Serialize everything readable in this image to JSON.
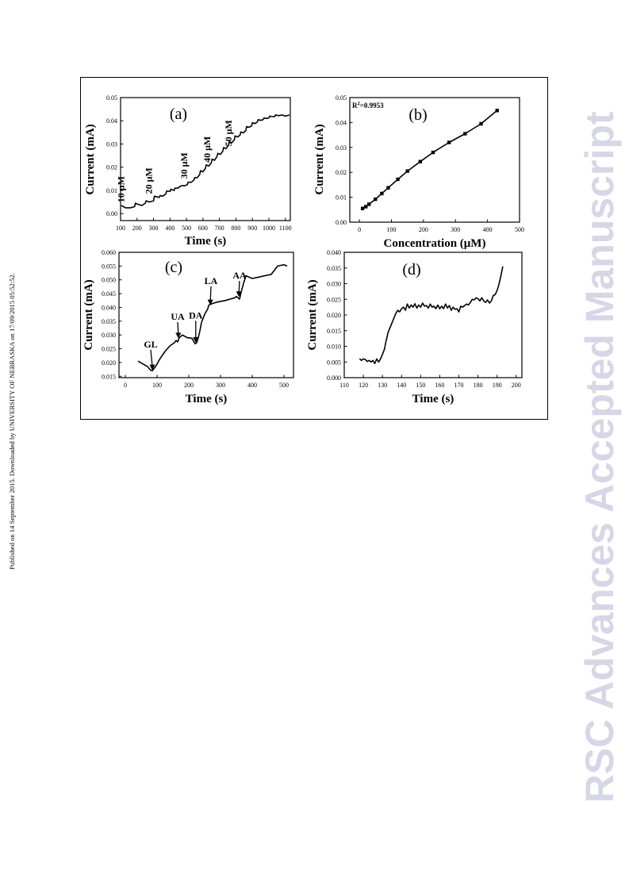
{
  "side_note": "Published on 14 September 2015. Downloaded by UNIVERSITY OF NEBRASKA on 17/09/2015 05:52:52.",
  "watermark": "RSC Advances Accepted Manuscript",
  "chart_data": [
    {
      "id": "a",
      "type": "line",
      "panel_label": "(a)",
      "xlabel": "Time (s)",
      "ylabel": "Current (mA)",
      "xlim": [
        100,
        1130
      ],
      "ylim": [
        -0.003,
        0.05
      ],
      "xticks": [
        100,
        200,
        300,
        400,
        500,
        600,
        700,
        800,
        900,
        1000,
        1100
      ],
      "xtick_labels": [
        "100",
        "200",
        "300",
        "400",
        "500",
        "600",
        "700",
        "800",
        "900",
        "1000",
        "1100"
      ],
      "yticks": [
        0.0,
        0.01,
        0.02,
        0.03,
        0.04,
        0.05
      ],
      "ytick_labels": [
        "0.00",
        "0.01",
        "0.02",
        "0.03",
        "0.04",
        "0.05"
      ],
      "annotations": [
        {
          "text": "10 μM",
          "x": 122,
          "y": 0.0048
        },
        {
          "text": "20 μM",
          "x": 290,
          "y": 0.0085
        },
        {
          "text": "30 μM",
          "x": 505,
          "y": 0.015
        },
        {
          "text": "40 μM",
          "x": 645,
          "y": 0.022
        },
        {
          "text": "50 μM",
          "x": 775,
          "y": 0.029
        }
      ],
      "series": [
        {
          "x": [
            105,
            130,
            160,
            185,
            190,
            205,
            230,
            250,
            255,
            275,
            300,
            305,
            335,
            340,
            355,
            375,
            380,
            400,
            405,
            425,
            430,
            450,
            455,
            470,
            480,
            490,
            505,
            510,
            530,
            545,
            550,
            565,
            580,
            585,
            600,
            615,
            620,
            635,
            650,
            655,
            670,
            685,
            690,
            705,
            720,
            725,
            740,
            755,
            760,
            775,
            790,
            795,
            810,
            825,
            830,
            845,
            860,
            865,
            880,
            895,
            900,
            915,
            930,
            935,
            950,
            965,
            970,
            985,
            1000,
            1005,
            1020,
            1035,
            1040,
            1060,
            1080,
            1100,
            1125
          ],
          "y": [
            0.0035,
            0.0025,
            0.0025,
            0.003,
            0.0045,
            0.004,
            0.0035,
            0.0045,
            0.0055,
            0.005,
            0.0055,
            0.0075,
            0.007,
            0.0078,
            0.0075,
            0.0085,
            0.0098,
            0.0095,
            0.0105,
            0.01,
            0.011,
            0.011,
            0.0115,
            0.012,
            0.012,
            0.012,
            0.0125,
            0.0135,
            0.0135,
            0.0145,
            0.0155,
            0.0155,
            0.0168,
            0.0185,
            0.018,
            0.0195,
            0.021,
            0.0205,
            0.0218,
            0.0235,
            0.023,
            0.0245,
            0.026,
            0.0255,
            0.0268,
            0.0285,
            0.028,
            0.0295,
            0.031,
            0.0305,
            0.0318,
            0.0335,
            0.033,
            0.0338,
            0.0352,
            0.0348,
            0.0358,
            0.0375,
            0.0372,
            0.0378,
            0.0392,
            0.0388,
            0.0395,
            0.0405,
            0.0402,
            0.0405,
            0.0412,
            0.041,
            0.0412,
            0.042,
            0.0418,
            0.0418,
            0.0425,
            0.0422,
            0.0425,
            0.042,
            0.0425
          ]
        }
      ]
    },
    {
      "id": "b",
      "type": "line",
      "panel_label": "(b)",
      "xlabel": "Concentration (μM)",
      "ylabel": "Current (mA)",
      "xlim": [
        -30,
        500
      ],
      "ylim": [
        0.0,
        0.05
      ],
      "xticks": [
        0,
        100,
        200,
        300,
        400,
        500
      ],
      "xtick_labels": [
        "0",
        "100",
        "200",
        "300",
        "400",
        "500"
      ],
      "yticks": [
        0.0,
        0.01,
        0.02,
        0.03,
        0.04,
        0.05
      ],
      "yticks_labels": [
        "0.00",
        "0.01",
        "0.02",
        "0.03",
        "0.04",
        "0.05"
      ],
      "r2_prefix": "R",
      "r2_sup": "2",
      "r2_value": "=0.9953",
      "series": [
        {
          "x": [
            10,
            20,
            30,
            50,
            70,
            90,
            120,
            150,
            190,
            230,
            280,
            330,
            380,
            430
          ],
          "y": [
            0.0055,
            0.0062,
            0.0072,
            0.0092,
            0.0115,
            0.0138,
            0.0172,
            0.0205,
            0.0243,
            0.028,
            0.032,
            0.0355,
            0.0395,
            0.0448
          ]
        }
      ]
    },
    {
      "id": "c",
      "type": "line",
      "panel_label": "(c)",
      "xlabel": "Time (s)",
      "ylabel": "Current (mA)",
      "xlim": [
        -20,
        530
      ],
      "ylim": [
        0.0145,
        0.06
      ],
      "xticks": [
        0,
        100,
        200,
        300,
        400,
        500
      ],
      "xtick_labels": [
        "0",
        "100",
        "200",
        "300",
        "400",
        "500"
      ],
      "yticks": [
        0.015,
        0.02,
        0.025,
        0.03,
        0.035,
        0.04,
        0.045,
        0.05,
        0.055,
        0.06
      ],
      "ytick_labels": [
        "0.015",
        "0.020",
        "0.025",
        "0.030",
        "0.035",
        "0.040",
        "0.045",
        "0.050",
        "0.055",
        "0.060"
      ],
      "annotations": [
        {
          "text": "GL",
          "x": 80,
          "y": 0.0255,
          "arrow_to": [
            85,
            0.0172
          ]
        },
        {
          "text": "UA",
          "x": 165,
          "y": 0.0355,
          "arrow_to": [
            167,
            0.0288
          ]
        },
        {
          "text": "DA",
          "x": 222,
          "y": 0.036,
          "arrow_to": [
            222,
            0.0272
          ]
        },
        {
          "text": "LA",
          "x": 270,
          "y": 0.0485,
          "arrow_to": [
            268,
            0.0408
          ]
        },
        {
          "text": "AA",
          "x": 360,
          "y": 0.0505,
          "arrow_to": [
            358,
            0.0438
          ]
        }
      ],
      "series": [
        {
          "x": [
            40,
            55,
            70,
            80,
            85,
            95,
            110,
            125,
            140,
            155,
            160,
            165,
            170,
            180,
            195,
            210,
            215,
            220,
            225,
            230,
            235,
            240,
            250,
            260,
            262,
            265,
            270,
            285,
            300,
            315,
            330,
            345,
            350,
            355,
            360,
            365,
            372,
            380,
            390,
            400,
            420,
            440,
            460,
            480,
            500,
            510
          ],
          "y": [
            0.0205,
            0.0195,
            0.0185,
            0.0172,
            0.017,
            0.0185,
            0.0215,
            0.024,
            0.026,
            0.0272,
            0.028,
            0.0275,
            0.029,
            0.03,
            0.029,
            0.0288,
            0.0278,
            0.0268,
            0.0272,
            0.029,
            0.0315,
            0.0345,
            0.0375,
            0.0395,
            0.0405,
            0.041,
            0.0412,
            0.0418,
            0.0422,
            0.0425,
            0.043,
            0.0435,
            0.044,
            0.0435,
            0.043,
            0.0455,
            0.0485,
            0.0515,
            0.051,
            0.0505,
            0.051,
            0.0515,
            0.052,
            0.055,
            0.0555,
            0.055
          ]
        }
      ]
    },
    {
      "id": "d",
      "type": "line",
      "panel_label": "(d)",
      "xlabel": "Time (s)",
      "ylabel": "Current (mA)",
      "xlim": [
        110,
        203
      ],
      "ylim": [
        0.0,
        0.04
      ],
      "xticks": [
        110,
        120,
        130,
        140,
        150,
        160,
        170,
        180,
        190,
        200
      ],
      "xtick_labels": [
        "110",
        "120",
        "130",
        "140",
        "150",
        "160",
        "170",
        "180",
        "190",
        "200"
      ],
      "yticks": [
        0.0,
        0.005,
        0.01,
        0.015,
        0.02,
        0.025,
        0.03,
        0.035,
        0.04
      ],
      "ytick_labels": [
        "0.000",
        "0.005",
        "0.010",
        "0.015",
        "0.020",
        "0.025",
        "0.030",
        "0.035",
        "0.040"
      ],
      "series": [
        {
          "x": [
            118,
            119,
            120,
            121,
            122,
            123,
            124,
            125,
            126,
            127,
            128,
            129,
            130,
            131,
            132,
            133,
            134,
            135,
            136,
            137,
            138,
            139,
            140,
            141,
            142,
            143,
            144,
            145,
            146,
            147,
            148,
            149,
            150,
            151,
            152,
            153,
            154,
            155,
            156,
            157,
            158,
            159,
            160,
            161,
            162,
            163,
            164,
            165,
            166,
            167,
            168,
            169,
            170,
            171,
            172,
            173,
            174,
            175,
            176,
            177,
            178,
            179,
            180,
            181,
            182,
            183,
            184,
            185,
            186,
            187,
            188,
            189,
            190,
            191,
            192,
            193
          ],
          "y": [
            0.006,
            0.0055,
            0.006,
            0.0058,
            0.0052,
            0.0055,
            0.005,
            0.0055,
            0.0045,
            0.006,
            0.005,
            0.006,
            0.0075,
            0.009,
            0.012,
            0.0145,
            0.016,
            0.0175,
            0.019,
            0.0205,
            0.0215,
            0.021,
            0.022,
            0.0225,
            0.0215,
            0.0235,
            0.0222,
            0.0232,
            0.0225,
            0.0236,
            0.0222,
            0.0232,
            0.0225,
            0.0238,
            0.0228,
            0.023,
            0.0222,
            0.0235,
            0.0225,
            0.0228,
            0.022,
            0.0232,
            0.022,
            0.0228,
            0.022,
            0.0235,
            0.0222,
            0.023,
            0.0215,
            0.0225,
            0.0218,
            0.022,
            0.021,
            0.0228,
            0.0225,
            0.023,
            0.0235,
            0.0232,
            0.024,
            0.025,
            0.0248,
            0.0255,
            0.0252,
            0.0245,
            0.0255,
            0.0245,
            0.024,
            0.0248,
            0.0238,
            0.0245,
            0.0262,
            0.0265,
            0.0278,
            0.0298,
            0.0325,
            0.0355
          ]
        }
      ]
    }
  ]
}
